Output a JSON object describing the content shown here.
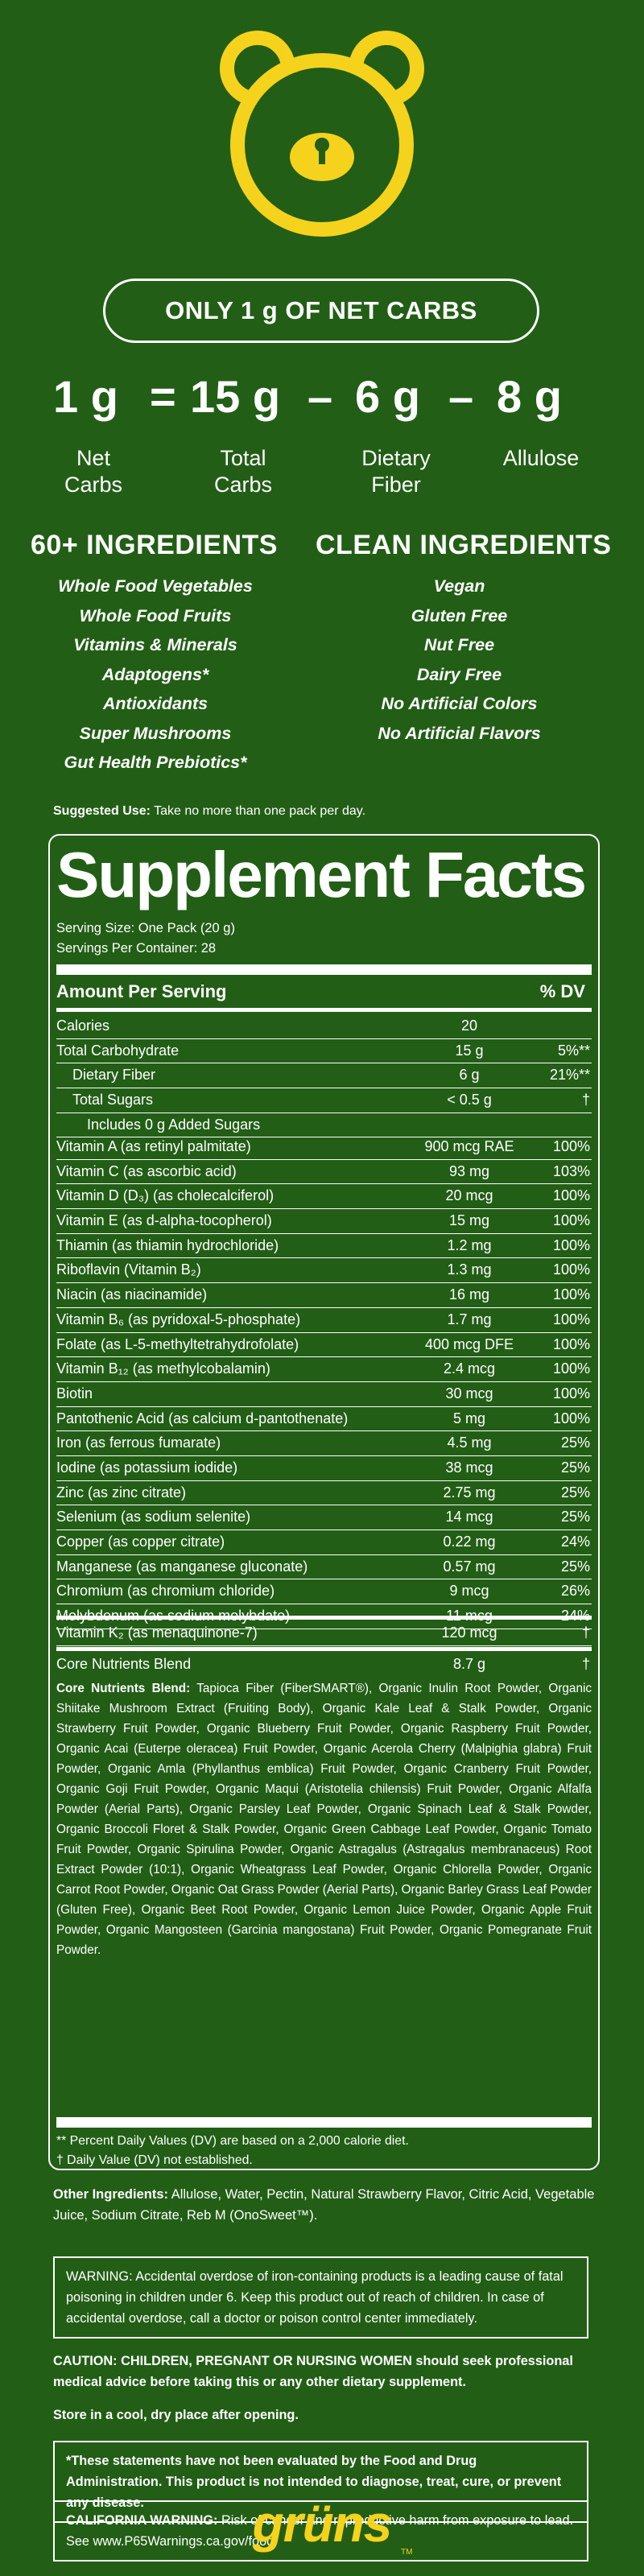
{
  "header": {
    "logo_icon": "bear-face-icon",
    "brand_color": "#f5d21b",
    "background_color": "#235e17"
  },
  "carbs_pill": "ONLY 1 g OF NET CARBS",
  "equation": {
    "net": "1 g",
    "equals": "=",
    "total": "15 g",
    "minus1": "–",
    "fiber": "6 g",
    "minus2": "–",
    "allulose": "8 g",
    "labels": {
      "net": [
        "Net",
        "Carbs"
      ],
      "total": [
        "Total",
        "Carbs"
      ],
      "fiber": [
        "Dietary",
        "Fiber"
      ],
      "allulose": [
        "Allulose"
      ]
    }
  },
  "ingredients": {
    "heading": "60+ INGREDIENTS",
    "items": [
      "Whole Food Vegetables",
      "Whole Food Fruits",
      "Vitamins & Minerals",
      "Adaptogens*",
      "Antioxidants",
      "Super Mushrooms",
      "Gut Health Prebiotics*"
    ]
  },
  "clean": {
    "heading": "CLEAN INGREDIENTS",
    "items": [
      "Vegan",
      "Gluten Free",
      "Nut Free",
      "Dairy Free",
      "No Artificial Colors",
      "No Artificial Flavors"
    ]
  },
  "suggested": {
    "label": "Suggested Use:",
    "text": " Take no more than one pack per day."
  },
  "facts": {
    "title": "Supplement Facts",
    "serving_size": "Serving Size: One Pack (20 g)",
    "servings_per": "Servings Per Container: 28",
    "amount_header": "Amount Per Serving",
    "dv_header": "% DV",
    "macros": [
      {
        "name": "Calories",
        "amount": "20",
        "dv": "",
        "indent": 0
      },
      {
        "name": "Total Carbohydrate",
        "amount": "15 g",
        "dv": "5%**",
        "indent": 0
      },
      {
        "name": "Dietary Fiber",
        "amount": "6 g",
        "dv": "21%**",
        "indent": 1
      },
      {
        "name": "Total Sugars",
        "amount": "< 0.5 g",
        "dv": "†",
        "indent": 1
      },
      {
        "name": "Includes 0 g Added Sugars",
        "amount": "",
        "dv": "",
        "indent": 2
      }
    ],
    "vitamins": [
      {
        "name": "Vitamin A (as retinyl palmitate)",
        "amount": "900 mcg RAE",
        "dv": "100%"
      },
      {
        "name": "Vitamin C (as ascorbic acid)",
        "amount": "93 mg",
        "dv": "103%"
      },
      {
        "name": "Vitamin D (D₃) (as cholecalciferol)",
        "amount": "20 mcg",
        "dv": "100%"
      },
      {
        "name": "Vitamin E (as d-alpha-tocopherol)",
        "amount": "15 mg",
        "dv": "100%"
      },
      {
        "name": "Thiamin (as thiamin hydrochloride)",
        "amount": "1.2 mg",
        "dv": "100%"
      },
      {
        "name": "Riboflavin (Vitamin B₂)",
        "amount": "1.3 mg",
        "dv": "100%"
      },
      {
        "name": "Niacin (as niacinamide)",
        "amount": "16 mg",
        "dv": "100%"
      },
      {
        "name": "Vitamin B₆ (as pyridoxal-5-phosphate)",
        "amount": "1.7 mg",
        "dv": "100%"
      },
      {
        "name": "Folate (as L-5-methyltetrahydrofolate)",
        "amount": "400 mcg DFE",
        "dv": "100%"
      },
      {
        "name": "Vitamin B₁₂ (as methylcobalamin)",
        "amount": "2.4 mcg",
        "dv": "100%"
      },
      {
        "name": "Biotin",
        "amount": "30 mcg",
        "dv": "100%"
      },
      {
        "name": "Pantothenic Acid (as calcium d-pantothenate)",
        "amount": "5 mg",
        "dv": "100%"
      },
      {
        "name": "Iron (as ferrous fumarate)",
        "amount": "4.5 mg",
        "dv": "25%"
      },
      {
        "name": "Iodine (as potassium iodide)",
        "amount": "38 mcg",
        "dv": "25%"
      },
      {
        "name": "Zinc (as zinc citrate)",
        "amount": "2.75 mg",
        "dv": "25%"
      },
      {
        "name": "Selenium (as sodium selenite)",
        "amount": "14 mcg",
        "dv": "25%"
      },
      {
        "name": "Copper (as copper citrate)",
        "amount": "0.22 mg",
        "dv": "24%"
      },
      {
        "name": "Manganese (as manganese gluconate)",
        "amount": "0.57 mg",
        "dv": "25%"
      },
      {
        "name": "Chromium (as chromium chloride)",
        "amount": "9 mcg",
        "dv": "26%"
      },
      {
        "name": "Molybdenum (as sodium molybdate)",
        "amount": "11 mcg",
        "dv": "24%"
      }
    ],
    "vitamin_k": {
      "name": "Vitamin K₂ (as menaquinone-7)",
      "amount": "120 mcg",
      "dv": "†"
    },
    "core_blend": {
      "name": "Core Nutrients Blend",
      "amount": "8.7 g",
      "dv": "†"
    },
    "blend_label": "Core Nutrients Blend:",
    "blend_text": " Tapioca Fiber (FiberSMART®), Organic Inulin Root Powder, Organic Shiitake Mushroom Extract (Fruiting Body), Organic Kale Leaf & Stalk Powder, Organic Strawberry Fruit Powder, Organic Blueberry Fruit Powder, Organic Raspberry Fruit Powder, Organic Acai (Euterpe oleracea) Fruit Powder, Organic Acerola Cherry (Malpighia glabra) Fruit Powder, Organic Amla (Phyllanthus emblica) Fruit Powder, Organic Cranberry Fruit Powder, Organic Goji Fruit Powder, Organic Maqui (Aristotelia chilensis) Fruit Powder, Organic Alfalfa Powder (Aerial Parts), Organic Parsley Leaf Powder, Organic Spinach Leaf & Stalk Powder, Organic Broccoli Floret & Stalk Powder, Organic Green Cabbage Leaf Powder, Organic Tomato Fruit Powder, Organic Spirulina Powder, Organic Astragalus (Astragalus membranaceus) Root Extract Powder (10:1), Organic Wheatgrass Leaf Powder, Organic Chlorella Powder, Organic Carrot Root Powder, Organic Oat Grass Powder (Aerial Parts), Organic Barley Grass Leaf Powder (Gluten Free), Organic Beet Root Powder, Organic Lemon Juice Powder, Organic Apple Fruit Powder, Organic Mangosteen (Garcinia mangostana) Fruit Powder, Organic Pomegranate Fruit Powder.",
    "footnote1": "** Percent Daily Values (DV) are based on a 2,000 calorie diet.",
    "footnote2": "† Daily Value (DV) not established."
  },
  "other": {
    "label": "Other Ingredients:",
    "text": " Allulose, Water, Pectin, Natural Strawberry Flavor, Citric Acid, Vegetable Juice, Sodium Citrate, Reb M (OnoSweet™)."
  },
  "warning_iron": "WARNING: Accidental overdose of iron-containing products is a leading cause of fatal poisoning in children under 6. Keep this product out of reach of children. In case of accidental overdose, call a doctor or poison control center immediately.",
  "caution": "CAUTION: CHILDREN, PREGNANT OR NURSING WOMEN should seek professional medical advice before taking this or any other dietary supplement.",
  "storage": "Store in a cool, dry place after opening.",
  "fda": "*These statements have not been evaluated by the Food and Drug Administration. This product is not intended to diagnose, treat, cure, or prevent any disease.",
  "ca_warning": {
    "label": "CALIFORNIA WARNING:",
    "text": " Risk of cancer and reproductive harm from exposure to lead. See www.P65Warnings.ca.gov/food."
  },
  "brand": {
    "name": "grüns",
    "tm": "TM"
  }
}
